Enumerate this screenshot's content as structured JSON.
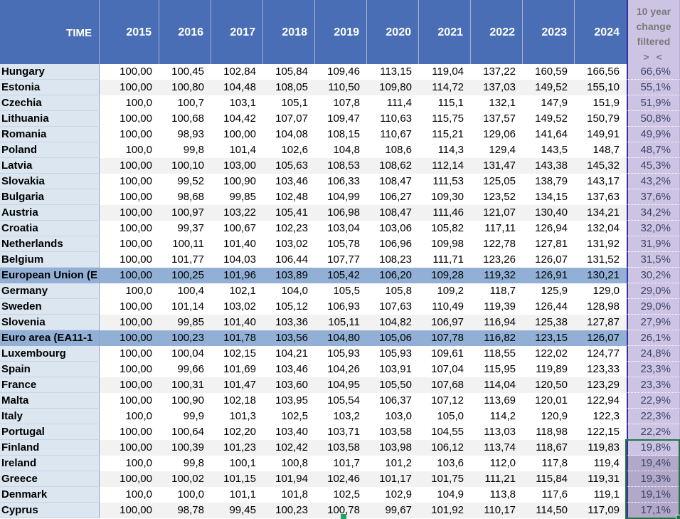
{
  "table": {
    "header": {
      "time_label": "TIME",
      "years": [
        "2015",
        "2016",
        "2017",
        "2018",
        "2019",
        "2020",
        "2021",
        "2022",
        "2023",
        "2024"
      ],
      "change_line1": "10 year",
      "change_line2": "change",
      "change_line3": "filtered",
      "filter_glyphs": "> <"
    },
    "rows": [
      {
        "country": "Hungary",
        "values": [
          "100,00",
          "100,45",
          "102,84",
          "105,84",
          "109,46",
          "113,15",
          "119,04",
          "137,22",
          "160,59",
          "166,56"
        ],
        "change": "66,6%",
        "stripe": false,
        "highlight": false,
        "sel": null
      },
      {
        "country": "Estonia",
        "values": [
          "100,00",
          "100,80",
          "104,48",
          "108,05",
          "110,50",
          "109,80",
          "114,72",
          "137,03",
          "149,52",
          "155,10"
        ],
        "change": "55,1%",
        "stripe": true,
        "highlight": false,
        "sel": null
      },
      {
        "country": "Czechia",
        "values": [
          "100,0",
          "100,7",
          "103,1",
          "105,1",
          "107,8",
          "111,4",
          "115,1",
          "132,1",
          "147,9",
          "151,9"
        ],
        "change": "51,9%",
        "stripe": false,
        "highlight": false,
        "sel": null
      },
      {
        "country": "Lithuania",
        "values": [
          "100,00",
          "100,68",
          "104,42",
          "107,07",
          "109,47",
          "110,63",
          "115,75",
          "137,57",
          "149,52",
          "150,79"
        ],
        "change": "50,8%",
        "stripe": false,
        "highlight": false,
        "sel": null
      },
      {
        "country": "Romania",
        "values": [
          "100,00",
          "98,93",
          "100,00",
          "104,08",
          "108,15",
          "110,67",
          "115,21",
          "129,06",
          "141,64",
          "149,91"
        ],
        "change": "49,9%",
        "stripe": false,
        "highlight": false,
        "sel": null
      },
      {
        "country": "Poland",
        "values": [
          "100,0",
          "99,8",
          "101,4",
          "102,6",
          "104,8",
          "108,6",
          "114,3",
          "129,4",
          "143,5",
          "148,7"
        ],
        "change": "48,7%",
        "stripe": false,
        "highlight": false,
        "sel": null
      },
      {
        "country": "Latvia",
        "values": [
          "100,00",
          "100,10",
          "103,00",
          "105,63",
          "108,53",
          "108,62",
          "112,14",
          "131,47",
          "143,38",
          "145,32"
        ],
        "change": "45,3%",
        "stripe": true,
        "highlight": false,
        "sel": null
      },
      {
        "country": "Slovakia",
        "values": [
          "100,00",
          "99,52",
          "100,90",
          "103,46",
          "106,33",
          "108,47",
          "111,53",
          "125,05",
          "138,79",
          "143,17"
        ],
        "change": "43,2%",
        "stripe": false,
        "highlight": false,
        "sel": null
      },
      {
        "country": "Bulgaria",
        "values": [
          "100,00",
          "98,68",
          "99,85",
          "102,48",
          "104,99",
          "106,27",
          "109,30",
          "123,52",
          "134,15",
          "137,63"
        ],
        "change": "37,6%",
        "stripe": false,
        "highlight": false,
        "sel": null
      },
      {
        "country": "Austria",
        "values": [
          "100,00",
          "100,97",
          "103,22",
          "105,41",
          "106,98",
          "108,47",
          "111,46",
          "121,07",
          "130,40",
          "134,21"
        ],
        "change": "34,2%",
        "stripe": true,
        "highlight": false,
        "sel": null
      },
      {
        "country": "Croatia",
        "values": [
          "100,00",
          "99,37",
          "100,67",
          "102,23",
          "103,04",
          "103,06",
          "105,82",
          "117,11",
          "126,94",
          "132,04"
        ],
        "change": "32,0%",
        "stripe": false,
        "highlight": false,
        "sel": null
      },
      {
        "country": "Netherlands",
        "values": [
          "100,00",
          "100,11",
          "101,40",
          "103,02",
          "105,78",
          "106,96",
          "109,98",
          "122,78",
          "127,81",
          "131,92"
        ],
        "change": "31,9%",
        "stripe": false,
        "highlight": false,
        "sel": null
      },
      {
        "country": "Belgium",
        "values": [
          "100,00",
          "101,77",
          "104,03",
          "106,44",
          "107,77",
          "108,23",
          "111,71",
          "123,26",
          "126,07",
          "131,52"
        ],
        "change": "31,5%",
        "stripe": false,
        "highlight": false,
        "sel": null
      },
      {
        "country": "European Union (E",
        "values": [
          "100,00",
          "100,25",
          "101,96",
          "103,89",
          "105,42",
          "106,20",
          "109,28",
          "119,32",
          "126,91",
          "130,21"
        ],
        "change": "30,2%",
        "stripe": false,
        "highlight": true,
        "sel": null
      },
      {
        "country": "Germany",
        "values": [
          "100,0",
          "100,4",
          "102,1",
          "104,0",
          "105,5",
          "105,8",
          "109,2",
          "118,7",
          "125,9",
          "129,0"
        ],
        "change": "29,0%",
        "stripe": false,
        "highlight": false,
        "sel": null
      },
      {
        "country": "Sweden",
        "values": [
          "100,00",
          "101,14",
          "103,02",
          "105,12",
          "106,93",
          "107,63",
          "110,49",
          "119,39",
          "126,44",
          "128,98"
        ],
        "change": "29,0%",
        "stripe": false,
        "highlight": false,
        "sel": null
      },
      {
        "country": "Slovenia",
        "values": [
          "100,00",
          "99,85",
          "101,40",
          "103,36",
          "105,11",
          "104,82",
          "106,97",
          "116,94",
          "125,38",
          "127,87"
        ],
        "change": "27,9%",
        "stripe": true,
        "highlight": false,
        "sel": null
      },
      {
        "country": "Euro area (EA11-1",
        "values": [
          "100,00",
          "100,23",
          "101,78",
          "103,56",
          "104,80",
          "105,06",
          "107,78",
          "116,82",
          "123,15",
          "126,07"
        ],
        "change": "26,1%",
        "stripe": false,
        "highlight": true,
        "sel": null
      },
      {
        "country": "Luxembourg",
        "values": [
          "100,00",
          "100,04",
          "102,15",
          "104,21",
          "105,93",
          "105,93",
          "109,61",
          "118,55",
          "122,02",
          "124,77"
        ],
        "change": "24,8%",
        "stripe": false,
        "highlight": false,
        "sel": null
      },
      {
        "country": "Spain",
        "values": [
          "100,00",
          "99,66",
          "101,69",
          "103,46",
          "104,26",
          "103,91",
          "107,04",
          "115,95",
          "119,89",
          "123,33"
        ],
        "change": "23,3%",
        "stripe": false,
        "highlight": false,
        "sel": null
      },
      {
        "country": "France",
        "values": [
          "100,00",
          "100,31",
          "101,47",
          "103,60",
          "104,95",
          "105,50",
          "107,68",
          "114,04",
          "120,50",
          "123,29"
        ],
        "change": "23,3%",
        "stripe": true,
        "highlight": false,
        "sel": null
      },
      {
        "country": "Malta",
        "values": [
          "100,00",
          "100,90",
          "102,18",
          "103,95",
          "105,54",
          "106,37",
          "107,12",
          "113,69",
          "120,01",
          "122,94"
        ],
        "change": "22,9%",
        "stripe": false,
        "highlight": false,
        "sel": null
      },
      {
        "country": "Italy",
        "values": [
          "100,0",
          "99,9",
          "101,3",
          "102,5",
          "103,2",
          "103,0",
          "105,0",
          "114,2",
          "120,9",
          "122,3"
        ],
        "change": "22,3%",
        "stripe": false,
        "highlight": false,
        "sel": null
      },
      {
        "country": "Portugal",
        "values": [
          "100,00",
          "100,64",
          "102,20",
          "103,40",
          "103,71",
          "103,58",
          "104,55",
          "113,03",
          "118,98",
          "122,15"
        ],
        "change": "22,2%",
        "stripe": false,
        "highlight": false,
        "sel": null
      },
      {
        "country": "Finland",
        "values": [
          "100,00",
          "100,39",
          "101,23",
          "102,42",
          "103,58",
          "103,98",
          "106,12",
          "113,74",
          "118,67",
          "119,83"
        ],
        "change": "19,8%",
        "stripe": true,
        "highlight": false,
        "sel": "active"
      },
      {
        "country": "Ireland",
        "values": [
          "100,0",
          "99,8",
          "100,1",
          "100,8",
          "101,7",
          "101,2",
          "103,6",
          "112,0",
          "117,8",
          "119,4"
        ],
        "change": "19,4%",
        "stripe": false,
        "highlight": false,
        "sel": "selected"
      },
      {
        "country": "Greece",
        "values": [
          "100,00",
          "100,02",
          "101,15",
          "101,94",
          "102,46",
          "101,17",
          "101,75",
          "111,21",
          "115,84",
          "119,31"
        ],
        "change": "19,3%",
        "stripe": true,
        "highlight": false,
        "sel": "selected"
      },
      {
        "country": "Denmark",
        "values": [
          "100,0",
          "100,0",
          "101,1",
          "101,8",
          "102,5",
          "102,9",
          "104,9",
          "113,8",
          "117,6",
          "119,1"
        ],
        "change": "19,1%",
        "stripe": false,
        "highlight": false,
        "sel": "selected"
      },
      {
        "country": "Cyprus",
        "values": [
          "100,00",
          "98,78",
          "99,45",
          "100,23",
          "100,78",
          "99,67",
          "101,92",
          "110,17",
          "114,50",
          "117,09"
        ],
        "change": "17,1%",
        "stripe": true,
        "highlight": false,
        "sel": "selected"
      }
    ]
  },
  "colors": {
    "header_bg": "#4a6eb5",
    "label_bg": "#dce6f1",
    "stripe_bg": "#f2f2f2",
    "highlight_bg": "#92b0d6",
    "change_bg": "#cdc4e4",
    "change_selected_bg": "#b2a8c8",
    "change_text": "#3e4366",
    "selection_border": "#217346"
  }
}
